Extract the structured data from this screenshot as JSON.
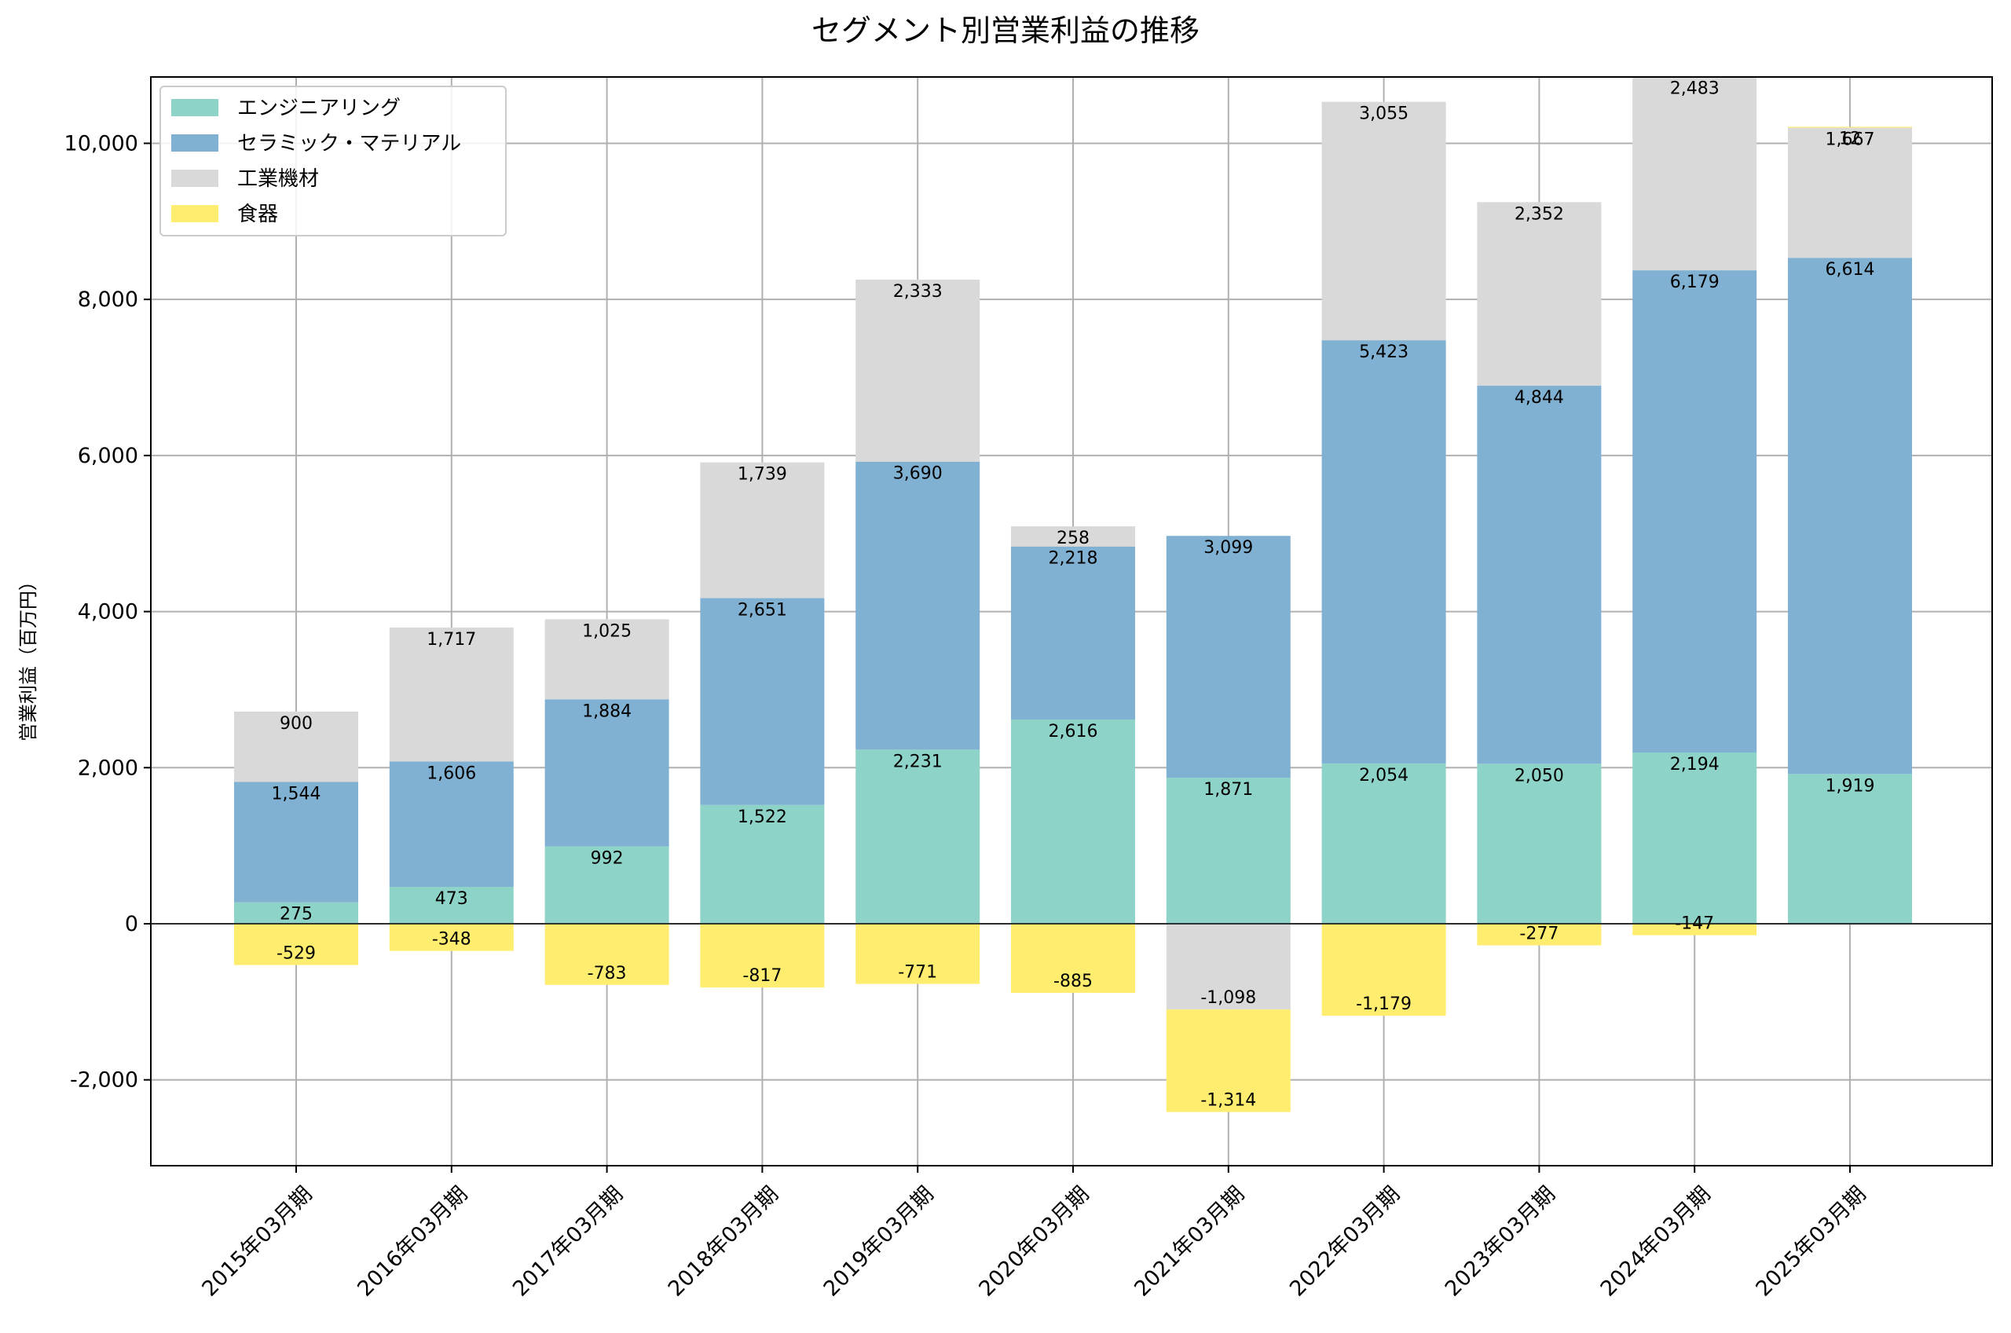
{
  "chart_data": {
    "type": "bar",
    "stacked": true,
    "title": "セグメント別営業利益の推移",
    "xlabel": "",
    "ylabel": "営業利益（百万円）",
    "ylim": [
      -3100,
      10850
    ],
    "yticks": [
      -2000,
      0,
      2000,
      4000,
      6000,
      8000,
      10000
    ],
    "ytick_labels": [
      "-2,000",
      "0",
      "2,000",
      "4,000",
      "6,000",
      "8,000",
      "10,000"
    ],
    "grid": true,
    "legend_position": "top-left",
    "categories": [
      "2015年03月期",
      "2016年03月期",
      "2017年03月期",
      "2018年03月期",
      "2019年03月期",
      "2020年03月期",
      "2021年03月期",
      "2022年03月期",
      "2023年03月期",
      "2024年03月期",
      "2025年03月期"
    ],
    "series": [
      {
        "name": "エンジニアリング",
        "color": "#8dd3c7",
        "values": [
          275,
          473,
          992,
          1522,
          2231,
          2616,
          1871,
          2054,
          2050,
          2194,
          1919
        ]
      },
      {
        "name": "セラミック・マテリアル",
        "color": "#80b1d3",
        "values": [
          1544,
          1606,
          1884,
          2651,
          3690,
          2218,
          3099,
          5423,
          4844,
          6179,
          6614
        ]
      },
      {
        "name": "工業機材",
        "color": "#d9d9d9",
        "values": [
          900,
          1717,
          1025,
          1739,
          2333,
          258,
          -1098,
          3055,
          2352,
          2483,
          1667
        ]
      },
      {
        "name": "食器",
        "color": "#ffed6f",
        "values": [
          -529,
          -348,
          -783,
          -817,
          -771,
          -885,
          -1314,
          -1179,
          -277,
          -147,
          12
        ]
      }
    ]
  }
}
